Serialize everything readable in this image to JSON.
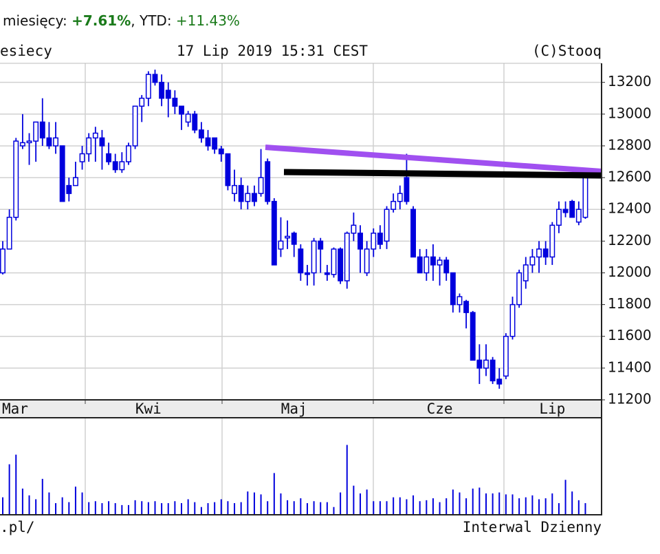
{
  "header": {
    "period_label": "miesięcy:",
    "period_change": "+7.61%",
    "ytd_label": ", YTD:",
    "ytd_change": "+11.43%"
  },
  "chart_data": {
    "type": "candlestick",
    "subtitle_left": "esiecy",
    "timestamp": "17 Lip 2019 15:31 CEST",
    "copyright": "(C)Stooq",
    "footer_left": ".pl/",
    "footer_right": "Interwal Dzienny",
    "categories": [
      null,
      null,
      "Mar",
      null,
      null,
      null,
      null,
      null,
      null,
      null,
      null,
      null,
      null,
      null,
      null,
      null,
      null,
      null,
      null,
      null,
      null,
      null,
      "Kwi",
      null,
      null,
      null,
      null,
      null,
      null,
      null,
      null,
      null,
      null,
      null,
      null,
      null,
      null,
      null,
      null,
      null,
      null,
      null,
      null,
      null,
      "Maj",
      null,
      null,
      null,
      null,
      null,
      null,
      null,
      null,
      null,
      null,
      null,
      null,
      null,
      null,
      null,
      null,
      null,
      null,
      null,
      null,
      null,
      "Cze",
      null,
      null,
      null,
      null,
      null,
      null,
      null,
      null,
      null,
      null,
      null,
      null,
      null,
      null,
      null,
      null,
      "Lip",
      null,
      null,
      null,
      null,
      null
    ],
    "series": {
      "open": [
        12000,
        12150,
        12350,
        12800,
        12820,
        12830,
        12950,
        12850,
        12800,
        12800,
        12550,
        12550,
        12700,
        12750,
        12850,
        12850,
        12750,
        12700,
        12650,
        12700,
        12800,
        13050,
        13100,
        13250,
        13200,
        13150,
        13100,
        13050,
        12950,
        13000,
        12900,
        12850,
        12850,
        12780,
        12750,
        12500,
        12550,
        12450,
        12500,
        12500,
        12700,
        12450,
        12150,
        12220,
        12250,
        12150,
        12000,
        12000,
        12200,
        12000,
        11990,
        12150,
        11950,
        12250,
        12250,
        12000,
        12150,
        12250,
        12200,
        12400,
        12450,
        12600,
        12400,
        12100,
        12000,
        12100,
        12050,
        12080,
        12000,
        11800,
        11820,
        11750,
        11450,
        11400,
        11450,
        11330,
        11350,
        11600,
        11800,
        11950,
        12050,
        12100,
        12150,
        12100,
        12300,
        12400,
        12450,
        12320,
        12350
      ],
      "high": [
        12200,
        12400,
        12850,
        13000,
        12880,
        12950,
        13100,
        12950,
        12950,
        12800,
        12600,
        12700,
        12800,
        12880,
        12920,
        12900,
        12820,
        12750,
        12760,
        12820,
        13050,
        13120,
        13270,
        13280,
        13250,
        13200,
        13150,
        13050,
        13020,
        13020,
        12950,
        12900,
        12850,
        12800,
        12750,
        12650,
        12600,
        12550,
        12550,
        12780,
        12720,
        12470,
        12350,
        12330,
        12260,
        12180,
        12050,
        12220,
        12220,
        12050,
        12160,
        12160,
        12260,
        12380,
        12300,
        12200,
        12280,
        12300,
        12420,
        12500,
        12550,
        12750,
        12420,
        12150,
        12150,
        12180,
        12100,
        12100,
        12000,
        11870,
        11830,
        11760,
        11550,
        11550,
        11470,
        11400,
        11620,
        11850,
        12020,
        12100,
        12150,
        12200,
        12200,
        12320,
        12450,
        12450,
        12460,
        12450,
        12620
      ],
      "low": [
        11990,
        12150,
        12330,
        12780,
        12680,
        12700,
        12800,
        12780,
        12750,
        12450,
        12450,
        12550,
        12650,
        12700,
        12700,
        12650,
        12680,
        12630,
        12630,
        12680,
        12780,
        12950,
        13050,
        13180,
        13050,
        12980,
        13000,
        12900,
        12920,
        12880,
        12820,
        12770,
        12750,
        12700,
        12520,
        12450,
        12400,
        12400,
        12420,
        12480,
        12430,
        12050,
        12100,
        12150,
        12100,
        11950,
        11920,
        11920,
        12000,
        11950,
        11970,
        11930,
        11900,
        12200,
        12000,
        11980,
        12100,
        12150,
        12150,
        12380,
        12400,
        12430,
        12100,
        12000,
        11950,
        11950,
        11920,
        11950,
        11750,
        11750,
        11650,
        11450,
        11300,
        11350,
        11300,
        11270,
        11330,
        11580,
        11780,
        11900,
        12000,
        12000,
        12050,
        12050,
        12250,
        12350,
        12350,
        12300,
        12340
      ],
      "close": [
        12150,
        12350,
        12830,
        12820,
        12830,
        12950,
        12850,
        12800,
        12850,
        12450,
        12500,
        12600,
        12750,
        12850,
        12880,
        12800,
        12700,
        12650,
        12700,
        12800,
        13050,
        13100,
        13250,
        13200,
        13100,
        13100,
        13050,
        13000,
        13000,
        12900,
        12850,
        12800,
        12780,
        12750,
        12550,
        12550,
        12450,
        12500,
        12450,
        12600,
        12450,
        12050,
        12200,
        12230,
        12180,
        12000,
        11990,
        12200,
        12150,
        11990,
        12150,
        11950,
        12250,
        12300,
        12150,
        12150,
        12250,
        12180,
        12400,
        12450,
        12500,
        12450,
        12100,
        12000,
        12100,
        12050,
        12080,
        12000,
        11800,
        11850,
        11750,
        11450,
        11400,
        11450,
        11320,
        11300,
        11600,
        11800,
        12000,
        12050,
        12100,
        12150,
        12100,
        12300,
        12400,
        12380,
        12350,
        12400,
        12600
      ]
    },
    "volume": [
      18,
      52,
      62,
      27,
      20,
      16,
      37,
      23,
      12,
      18,
      13,
      29,
      23,
      13,
      14,
      12,
      14,
      12,
      10,
      10,
      15,
      14,
      13,
      14,
      12,
      12,
      14,
      12,
      16,
      13,
      8,
      12,
      13,
      16,
      14,
      12,
      13,
      24,
      23,
      21,
      14,
      43,
      22,
      15,
      14,
      17,
      12,
      14,
      13,
      13,
      8,
      23,
      72,
      30,
      22,
      26,
      14,
      14,
      14,
      18,
      18,
      16,
      20,
      14,
      15,
      17,
      13,
      17,
      26,
      23,
      17,
      27,
      28,
      22,
      22,
      23,
      21,
      21,
      17,
      18,
      20,
      16,
      17,
      22,
      12,
      36,
      24,
      15,
      12
    ],
    "color": "#0000dd",
    "ylim": [
      11200,
      13320
    ],
    "yticks": [
      11200,
      11400,
      11600,
      11800,
      12000,
      12200,
      12400,
      12600,
      12800,
      13000,
      13200
    ],
    "vlim": [
      0,
      100
    ],
    "grid": true
  }
}
